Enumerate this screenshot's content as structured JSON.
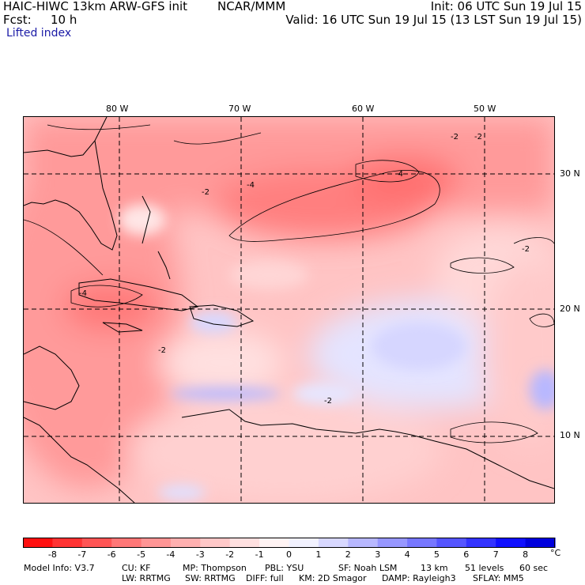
{
  "header": {
    "model_title": "HAIC-HIWC 13km ARW-GFS init",
    "org": "NCAR/MMM",
    "init": "Init: 06 UTC Sun 19 Jul 15",
    "fcst_label": "Fcst:",
    "fcst_value": "10 h",
    "valid": "Valid: 16 UTC Sun 19 Jul 15 (13 LST Sun 19 Jul 15)",
    "field": "Lifted index"
  },
  "map": {
    "lon_labels": [
      "80 W",
      "70 W",
      "60 W",
      "50 W"
    ],
    "lat_labels": [
      "30 N",
      "20 N",
      "10 N"
    ],
    "contour_labels": [
      "-4",
      "-4",
      "-2",
      "-2",
      "-2",
      "-4",
      "-2",
      "-2",
      "-2"
    ]
  },
  "colorbar": {
    "unit": "°C",
    "ticks": [
      "-8",
      "-7",
      "-6",
      "-5",
      "-4",
      "-3",
      "-2",
      "-1",
      "0",
      "1",
      "2",
      "3",
      "4",
      "5",
      "6",
      "7",
      "8"
    ],
    "colors": [
      "#ff1010",
      "#ff3333",
      "#ff5555",
      "#ff7777",
      "#ff9595",
      "#ffb0b0",
      "#ffc8c8",
      "#ffe0e0",
      "#fff3f3",
      "#f2f2ff",
      "#d8d8ff",
      "#b8b8ff",
      "#9797ff",
      "#7777ff",
      "#5555ff",
      "#3333ff",
      "#1010ff",
      "#0000dd"
    ]
  },
  "footer": {
    "line1": [
      "Model Info: V3.7",
      "CU: KF",
      "MP: Thompson",
      "PBL: YSU",
      "SF: Noah LSM",
      "13 km",
      "51 levels",
      "60 sec"
    ],
    "line2": [
      "LW: RRTMG",
      "SW: RRTMG",
      "DIFF: full",
      "KM: 2D Smagor",
      "DAMP: Rayleigh3",
      "SFLAY: MM5"
    ]
  }
}
